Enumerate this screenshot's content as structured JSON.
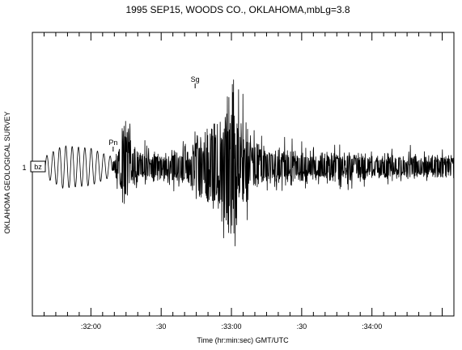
{
  "chart_data": {
    "type": "line",
    "title": "1995 SEP15, WOODS CO., OKLAHOMA,mbLg=3.8",
    "xlabel": "Time (hr:min:sec)  GMT/UTC",
    "ylabel": "OKLAHOMA GEOLOGICAL SURVEY",
    "grid": false,
    "x_unit": "seconds after 00:00 on the minute (axis shows mm:ss)",
    "xlim": [
      1895,
      2075
    ],
    "x_ticks": [
      {
        "value": 1920,
        "label": ":32:00"
      },
      {
        "value": 1950,
        "label": ":30"
      },
      {
        "value": 1980,
        "label": ":33:00"
      },
      {
        "value": 2010,
        "label": ":30"
      },
      {
        "value": 2040,
        "label": ":34:00"
      }
    ],
    "trace": {
      "number": "1",
      "channel": "bz",
      "phase_picks": [
        {
          "label": "Pn",
          "x": 1929.5
        },
        {
          "label": "Sg",
          "x": 1964.5
        }
      ],
      "envelope": {
        "x": [
          1895,
          1908,
          1920,
          1928,
          1930,
          1932,
          1933,
          1934,
          1936,
          1938,
          1940,
          1945,
          1952,
          1958,
          1962,
          1965,
          1968,
          1970,
          1972,
          1974,
          1976,
          1978,
          1979,
          1980,
          1981,
          1982,
          1984,
          1986,
          1988,
          1990,
          1993,
          1996,
          2000,
          2005,
          2010,
          2020,
          2030,
          2040,
          2050,
          2060,
          2075
        ],
        "upper": [
          0.02,
          0.16,
          0.14,
          0.08,
          0.1,
          0.34,
          0.74,
          0.82,
          0.6,
          0.32,
          0.26,
          0.22,
          0.22,
          0.24,
          0.32,
          0.66,
          0.55,
          0.8,
          0.78,
          0.72,
          0.9,
          1.05,
          1.12,
          1.4,
          1.1,
          0.7,
          0.82,
          0.45,
          0.48,
          0.4,
          0.36,
          0.3,
          0.3,
          0.26,
          0.26,
          0.22,
          0.22,
          0.2,
          0.2,
          0.18,
          0.18
        ],
        "lower": [
          -0.02,
          -0.16,
          -0.14,
          -0.08,
          -0.1,
          -0.38,
          -0.72,
          -0.5,
          -0.4,
          -0.25,
          -0.22,
          -0.2,
          -0.2,
          -0.22,
          -0.3,
          -0.48,
          -0.45,
          -0.5,
          -0.6,
          -0.8,
          -1.05,
          -1.25,
          -1.32,
          -1.25,
          -0.9,
          -0.6,
          -0.55,
          -0.5,
          -0.38,
          -0.32,
          -0.3,
          -0.26,
          -0.28,
          -0.24,
          -0.22,
          -0.2,
          -0.2,
          -0.18,
          -0.18,
          -0.16,
          -0.16
        ]
      }
    }
  }
}
